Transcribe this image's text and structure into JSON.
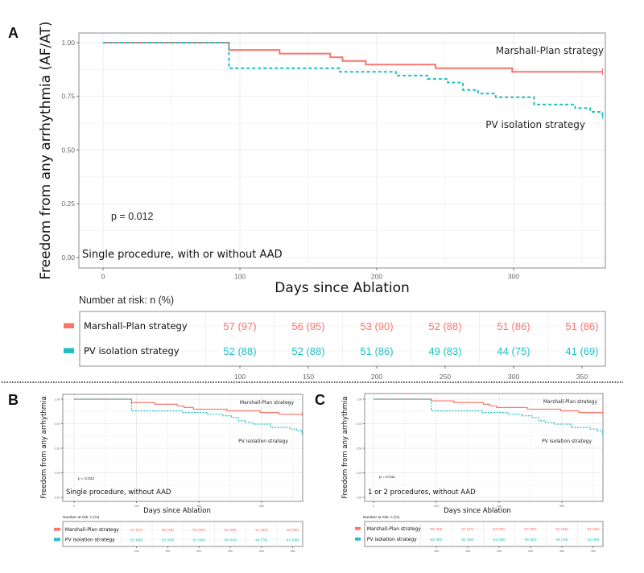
{
  "colors": {
    "marshall": "#F8766D",
    "pv": "#1FBFC4"
  },
  "chart_data": [
    {
      "panel_label": "A",
      "type": "line",
      "subtype": "kaplan-meier",
      "ylabel": "Freedom from any arrhythmia (AF/AT)",
      "xlabel": "Days since Ablation",
      "xticks": [
        "0",
        "100",
        "200",
        "300"
      ],
      "yticks": [
        "0.00",
        "0.25",
        "0.50",
        "0.75",
        "1.00"
      ],
      "xlim": [
        0,
        365
      ],
      "ylim": [
        0,
        1
      ],
      "grid": true,
      "p_value": "p = 0.012",
      "subtitle": "Single procedure, with or without AAD",
      "series": [
        {
          "name": "Marshall-Plan strategy",
          "color": "#F8766D",
          "linestyle": "solid",
          "x": [
            0,
            92,
            129,
            166,
            175,
            192,
            243,
            299,
            365
          ],
          "y": [
            1,
            0.966,
            0.949,
            0.932,
            0.915,
            0.898,
            0.881,
            0.864,
            0.864
          ]
        },
        {
          "name": "PV isolation strategy",
          "color": "#1FBFC4",
          "linestyle": "dashed",
          "x": [
            0,
            92,
            173,
            214,
            237,
            252,
            263,
            274,
            287,
            315,
            345,
            356,
            365
          ],
          "y": [
            1,
            0.881,
            0.864,
            0.847,
            0.831,
            0.814,
            0.78,
            0.763,
            0.746,
            0.712,
            0.695,
            0.678,
            0.661
          ]
        }
      ],
      "risk_table": {
        "title": "Number at risk: n (%)",
        "times": [
          "100",
          "150",
          "200",
          "250",
          "300",
          "350"
        ],
        "rows": [
          {
            "name": "Marshall-Plan strategy",
            "values": [
              "57 (97)",
              "56 (95)",
              "53 (90)",
              "52 (88)",
              "51 (86)",
              "51 (86)"
            ]
          },
          {
            "name": "PV isolation strategy",
            "values": [
              "52 (88)",
              "52 (88)",
              "51 (86)",
              "49 (83)",
              "44 (75)",
              "41 (69)"
            ]
          }
        ]
      }
    },
    {
      "panel_label": "B",
      "type": "line",
      "subtype": "kaplan-meier",
      "ylabel": "Freedom from any arrhythmia",
      "xlabel": "Days since Ablation",
      "xticks": [
        "0",
        "100",
        "200",
        "300"
      ],
      "yticks": [
        "0.00",
        "0.25",
        "0.50",
        "0.75",
        "1.00"
      ],
      "xlim": [
        0,
        365
      ],
      "ylim": [
        0,
        1
      ],
      "grid": true,
      "p_value": "p = 0.022",
      "subtitle": "Single procedure, without AAD",
      "series": [
        {
          "name": "Marshall-Plan strategy",
          "color": "#F8766D",
          "linestyle": "solid",
          "x": [
            0,
            92,
            129,
            165,
            176,
            191,
            245,
            298,
            328,
            365
          ],
          "y": [
            1,
            0.966,
            0.949,
            0.932,
            0.915,
            0.898,
            0.881,
            0.864,
            0.847,
            0.847
          ]
        },
        {
          "name": "PV isolation strategy",
          "color": "#1FBFC4",
          "linestyle": "dashed",
          "x": [
            0,
            92,
            173,
            214,
            237,
            252,
            263,
            274,
            287,
            315,
            345,
            356,
            365
          ],
          "y": [
            1,
            0.881,
            0.864,
            0.847,
            0.831,
            0.814,
            0.78,
            0.763,
            0.746,
            0.712,
            0.695,
            0.678,
            0.661
          ]
        }
      ],
      "risk_table": {
        "title": "Number at risk: n (%)",
        "times": [
          "100",
          "150",
          "200",
          "250",
          "300",
          "350"
        ],
        "rows": [
          {
            "name": "Marshall-Plan strategy",
            "values": [
              "57 (97)",
              "56 (95)",
              "53 (90)",
              "52 (88)",
              "51 (86)",
              "50 (85)"
            ]
          },
          {
            "name": "PV isolation strategy",
            "values": [
              "52 (88)",
              "52 (88)",
              "51 (86)",
              "49 (83)",
              "44 (75)",
              "41 (69)"
            ]
          }
        ]
      }
    },
    {
      "panel_label": "C",
      "type": "line",
      "subtype": "kaplan-meier",
      "ylabel": "Freedom from any arrhythmia",
      "xlabel": "Days since Ablation",
      "xticks": [
        "0",
        "100",
        "200",
        "300"
      ],
      "yticks": [
        "0.00",
        "0.25",
        "0.50",
        "0.75",
        "1.00"
      ],
      "xlim": [
        0,
        365
      ],
      "ylim": [
        0,
        1
      ],
      "grid": true,
      "p_value": "p = 0.011",
      "subtitle": "1 or 2 procedures, without AAD",
      "series": [
        {
          "name": "Marshall-Plan strategy",
          "color": "#F8766D",
          "linestyle": "solid",
          "x": [
            0,
            92,
            128,
            175,
            185,
            196,
            245,
            298,
            327,
            365
          ],
          "y": [
            1,
            0.983,
            0.966,
            0.949,
            0.932,
            0.915,
            0.898,
            0.881,
            0.864,
            0.864
          ]
        },
        {
          "name": "PV isolation strategy",
          "color": "#1FBFC4",
          "linestyle": "dashed",
          "x": [
            0,
            92,
            173,
            214,
            237,
            252,
            263,
            274,
            287,
            315,
            345,
            356,
            365
          ],
          "y": [
            1,
            0.881,
            0.864,
            0.847,
            0.831,
            0.814,
            0.78,
            0.763,
            0.746,
            0.712,
            0.695,
            0.678,
            0.661
          ]
        }
      ],
      "risk_table": {
        "title": "Number at risk: n (%)",
        "times": [
          "100",
          "150",
          "200",
          "250",
          "300",
          "350"
        ],
        "rows": [
          {
            "name": "Marshall-Plan strategy",
            "values": [
              "58 (98)",
              "57 (97)",
              "54 (92)",
              "53 (90)",
              "52 (88)",
              "51 (86)"
            ]
          },
          {
            "name": "PV isolation strategy",
            "values": [
              "52 (88)",
              "52 (88)",
              "51 (86)",
              "49 (83)",
              "44 (75)",
              "41 (69)"
            ]
          }
        ]
      }
    }
  ]
}
